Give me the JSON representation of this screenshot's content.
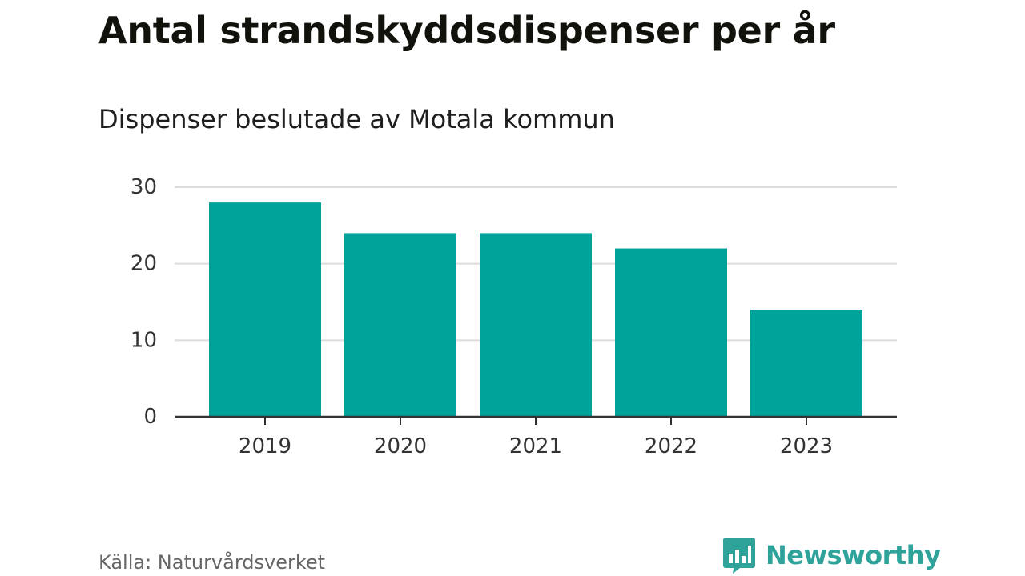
{
  "header": {
    "title": "Antal strandskyddsdispenser per år",
    "subtitle": "Dispenser beslutade av Motala kommun"
  },
  "footer": {
    "source": "Källa: Naturvårdsverket",
    "brand": "Newsworthy"
  },
  "colors": {
    "bar": "#00a39a",
    "grid": "#dcdcdc",
    "axis": "#333333",
    "brand": "#2fa39a"
  },
  "chart_data": {
    "type": "bar",
    "title": "Antal strandskyddsdispenser per år",
    "subtitle": "Dispenser beslutade av Motala kommun",
    "xlabel": "",
    "ylabel": "",
    "categories": [
      "2019",
      "2020",
      "2021",
      "2022",
      "2023"
    ],
    "values": [
      28,
      24,
      24,
      22,
      14
    ],
    "ylim": [
      0,
      30
    ],
    "yticks": [
      0,
      10,
      20,
      30
    ],
    "grid": true
  }
}
